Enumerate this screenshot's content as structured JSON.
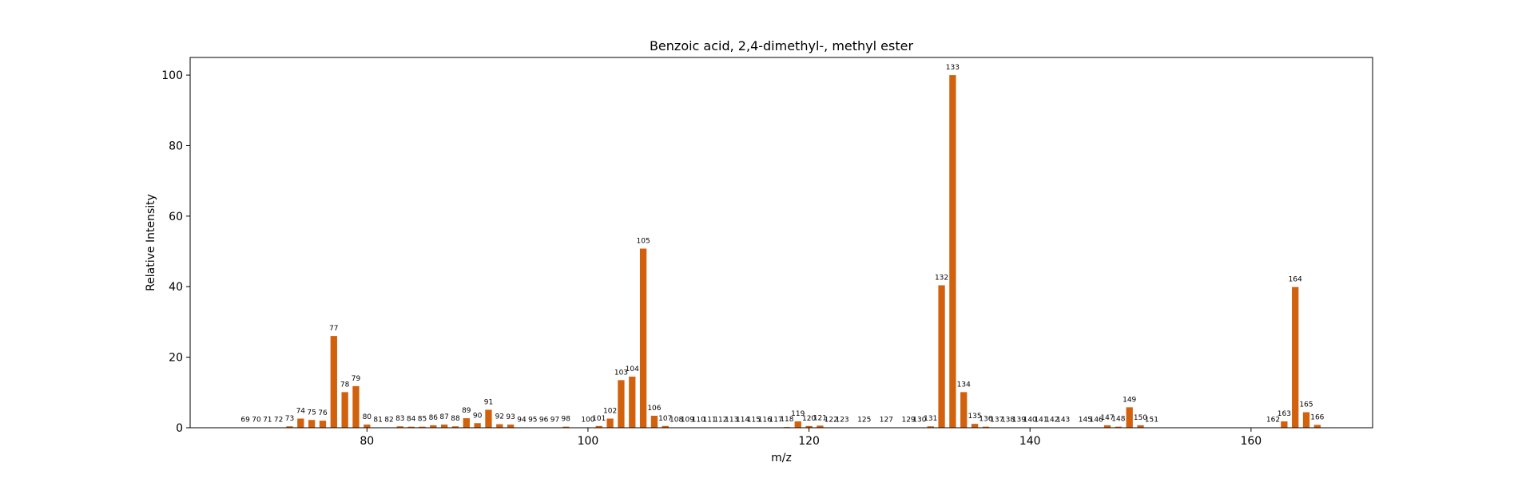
{
  "chart_data": {
    "type": "bar",
    "title": "Benzoic acid, 2,4-dimethyl-, methyl ester",
    "xlabel": "m/z",
    "ylabel": "Relative Intensity",
    "xlim": [
      64,
      171
    ],
    "ylim": [
      0,
      105
    ],
    "xticks": [
      80,
      100,
      120,
      140,
      160
    ],
    "yticks": [
      0,
      20,
      40,
      60,
      80,
      100
    ],
    "bar_color": "#d2610e",
    "grid": false,
    "legend": "none",
    "x": [
      69,
      70,
      71,
      72,
      73,
      74,
      75,
      76,
      77,
      78,
      79,
      80,
      81,
      82,
      83,
      84,
      85,
      86,
      87,
      88,
      89,
      90,
      91,
      92,
      93,
      94,
      95,
      96,
      97,
      98,
      100,
      101,
      102,
      103,
      104,
      105,
      106,
      107,
      108,
      109,
      110,
      111,
      112,
      113,
      114,
      115,
      116,
      117,
      118,
      119,
      120,
      121,
      122,
      123,
      125,
      127,
      129,
      130,
      131,
      132,
      133,
      134,
      135,
      136,
      137,
      138,
      139,
      140,
      141,
      142,
      143,
      145,
      146,
      147,
      148,
      149,
      150,
      151,
      162,
      163,
      164,
      165,
      166
    ],
    "values": [
      0.1,
      0.1,
      0.1,
      0.1,
      0.4,
      2.6,
      2.2,
      2.0,
      26.0,
      10.1,
      11.8,
      0.9,
      0.1,
      0.1,
      0.4,
      0.3,
      0.3,
      0.7,
      0.9,
      0.4,
      2.7,
      1.3,
      5.1,
      1.0,
      0.9,
      0.1,
      0.1,
      0.1,
      0.1,
      0.3,
      0.1,
      0.5,
      2.6,
      13.5,
      14.5,
      50.8,
      3.4,
      0.5,
      0.1,
      0.1,
      0.1,
      0.1,
      0.1,
      0.1,
      0.1,
      0.1,
      0.1,
      0.1,
      0.2,
      1.8,
      0.5,
      0.6,
      0.1,
      0.1,
      0.1,
      0.1,
      0.1,
      0.1,
      0.4,
      40.4,
      100.0,
      10.1,
      1.1,
      0.3,
      0.1,
      0.1,
      0.1,
      0.1,
      0.1,
      0.1,
      0.1,
      0.1,
      0.1,
      0.7,
      0.3,
      5.8,
      0.7,
      0.1,
      0.1,
      1.8,
      39.9,
      4.4,
      0.8
    ]
  }
}
